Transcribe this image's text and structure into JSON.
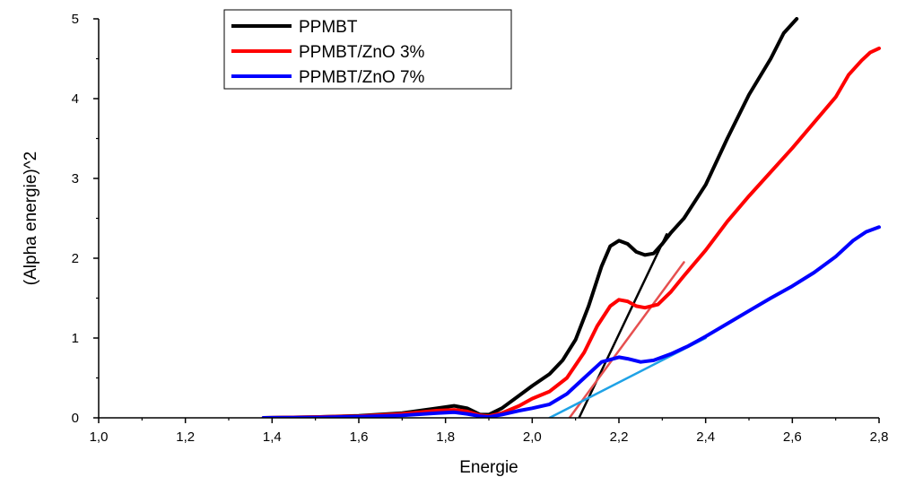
{
  "chart_data": {
    "type": "line",
    "title": "",
    "xlabel": "Energie",
    "ylabel": "(Alpha energie)^2",
    "xlim": [
      1.0,
      2.8
    ],
    "ylim": [
      0,
      5
    ],
    "x_ticks": [
      {
        "value": 1.0,
        "label": "1,0"
      },
      {
        "value": 1.2,
        "label": "1,2"
      },
      {
        "value": 1.4,
        "label": "1,4"
      },
      {
        "value": 1.6,
        "label": "1,6"
      },
      {
        "value": 1.8,
        "label": "1,8"
      },
      {
        "value": 2.0,
        "label": "2,0"
      },
      {
        "value": 2.2,
        "label": "2,2"
      },
      {
        "value": 2.4,
        "label": "2,4"
      },
      {
        "value": 2.6,
        "label": "2,6"
      },
      {
        "value": 2.8,
        "label": "2,8"
      }
    ],
    "y_ticks": [
      {
        "value": 0,
        "label": "0"
      },
      {
        "value": 1,
        "label": "1"
      },
      {
        "value": 2,
        "label": "2"
      },
      {
        "value": 3,
        "label": "3"
      },
      {
        "value": 4,
        "label": "4"
      },
      {
        "value": 5,
        "label": "5"
      }
    ],
    "grid": false,
    "legend_position": "top-left",
    "series": [
      {
        "name": "PPMBT",
        "color": "#000000",
        "points": [
          [
            1.38,
            0.0
          ],
          [
            1.5,
            0.01
          ],
          [
            1.6,
            0.025
          ],
          [
            1.7,
            0.06
          ],
          [
            1.78,
            0.12
          ],
          [
            1.82,
            0.15
          ],
          [
            1.85,
            0.12
          ],
          [
            1.88,
            0.04
          ],
          [
            1.9,
            0.04
          ],
          [
            1.93,
            0.12
          ],
          [
            1.97,
            0.28
          ],
          [
            2.0,
            0.4
          ],
          [
            2.04,
            0.55
          ],
          [
            2.07,
            0.72
          ],
          [
            2.1,
            0.98
          ],
          [
            2.13,
            1.4
          ],
          [
            2.16,
            1.9
          ],
          [
            2.18,
            2.15
          ],
          [
            2.2,
            2.22
          ],
          [
            2.22,
            2.18
          ],
          [
            2.24,
            2.08
          ],
          [
            2.26,
            2.04
          ],
          [
            2.28,
            2.06
          ],
          [
            2.3,
            2.18
          ],
          [
            2.32,
            2.32
          ],
          [
            2.35,
            2.5
          ],
          [
            2.4,
            2.92
          ],
          [
            2.45,
            3.5
          ],
          [
            2.5,
            4.05
          ],
          [
            2.55,
            4.5
          ],
          [
            2.58,
            4.82
          ],
          [
            2.61,
            5.0
          ]
        ]
      },
      {
        "name": "PPMBT/ZnO 3%",
        "color": "#ff0000",
        "points": [
          [
            1.38,
            0.0
          ],
          [
            1.5,
            0.01
          ],
          [
            1.6,
            0.02
          ],
          [
            1.7,
            0.05
          ],
          [
            1.78,
            0.09
          ],
          [
            1.82,
            0.1
          ],
          [
            1.85,
            0.08
          ],
          [
            1.88,
            0.03
          ],
          [
            1.9,
            0.02
          ],
          [
            1.93,
            0.06
          ],
          [
            1.97,
            0.15
          ],
          [
            2.0,
            0.24
          ],
          [
            2.04,
            0.33
          ],
          [
            2.08,
            0.5
          ],
          [
            2.12,
            0.82
          ],
          [
            2.15,
            1.15
          ],
          [
            2.18,
            1.4
          ],
          [
            2.2,
            1.48
          ],
          [
            2.22,
            1.46
          ],
          [
            2.24,
            1.4
          ],
          [
            2.26,
            1.38
          ],
          [
            2.29,
            1.42
          ],
          [
            2.32,
            1.58
          ],
          [
            2.35,
            1.78
          ],
          [
            2.4,
            2.1
          ],
          [
            2.45,
            2.46
          ],
          [
            2.5,
            2.78
          ],
          [
            2.55,
            3.08
          ],
          [
            2.6,
            3.38
          ],
          [
            2.65,
            3.7
          ],
          [
            2.7,
            4.02
          ],
          [
            2.73,
            4.3
          ],
          [
            2.76,
            4.48
          ],
          [
            2.78,
            4.58
          ],
          [
            2.8,
            4.63
          ]
        ]
      },
      {
        "name": "PPMBT/ZnO 7%",
        "color": "#0000ff",
        "points": [
          [
            1.38,
            0.0
          ],
          [
            1.5,
            0.005
          ],
          [
            1.6,
            0.015
          ],
          [
            1.7,
            0.03
          ],
          [
            1.78,
            0.06
          ],
          [
            1.82,
            0.07
          ],
          [
            1.85,
            0.05
          ],
          [
            1.88,
            0.02
          ],
          [
            1.9,
            0.01
          ],
          [
            1.93,
            0.04
          ],
          [
            1.97,
            0.09
          ],
          [
            2.0,
            0.12
          ],
          [
            2.04,
            0.17
          ],
          [
            2.08,
            0.3
          ],
          [
            2.12,
            0.5
          ],
          [
            2.16,
            0.7
          ],
          [
            2.2,
            0.76
          ],
          [
            2.22,
            0.74
          ],
          [
            2.25,
            0.7
          ],
          [
            2.28,
            0.72
          ],
          [
            2.32,
            0.8
          ],
          [
            2.36,
            0.9
          ],
          [
            2.4,
            1.02
          ],
          [
            2.45,
            1.18
          ],
          [
            2.5,
            1.34
          ],
          [
            2.55,
            1.5
          ],
          [
            2.6,
            1.65
          ],
          [
            2.65,
            1.82
          ],
          [
            2.7,
            2.02
          ],
          [
            2.74,
            2.22
          ],
          [
            2.77,
            2.33
          ],
          [
            2.8,
            2.39
          ]
        ]
      }
    ],
    "fit_lines": [
      {
        "color": "#000000",
        "points": [
          [
            2.108,
            0.0
          ],
          [
            2.31,
            2.3
          ]
        ]
      },
      {
        "color": "#e65050",
        "points": [
          [
            2.086,
            0.0
          ],
          [
            2.35,
            1.95
          ]
        ]
      },
      {
        "color": "#1fa2e6",
        "points": [
          [
            2.04,
            0.0
          ],
          [
            2.4,
            1.0
          ]
        ]
      }
    ]
  }
}
